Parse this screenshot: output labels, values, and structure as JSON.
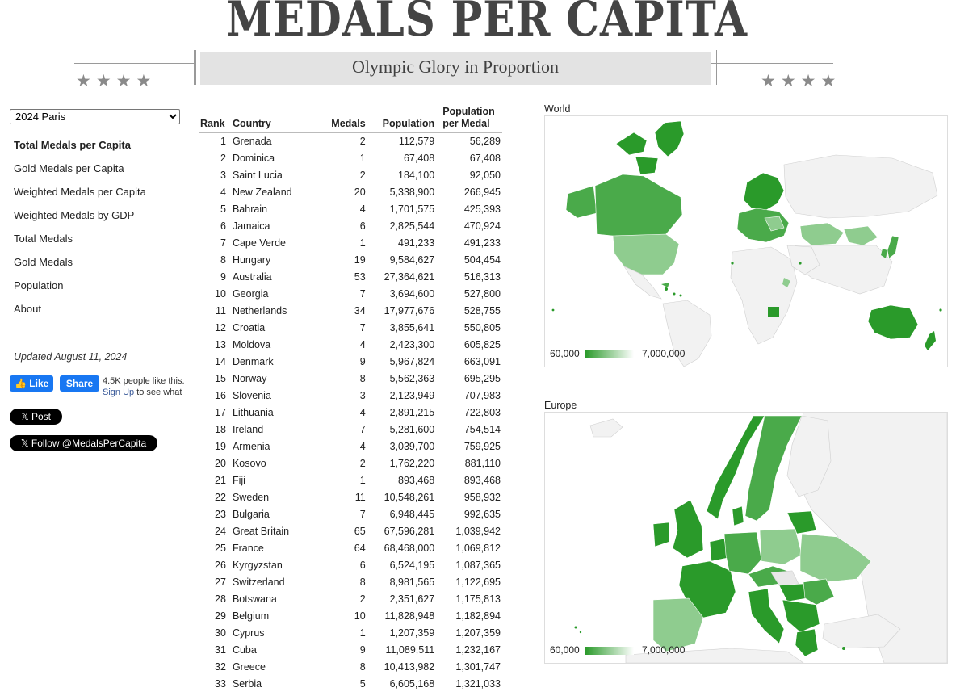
{
  "header": {
    "title": "MEDALS PER CAPITA",
    "subtitle": "Olympic Glory in Proportion",
    "stars_left": "★★★★",
    "stars_right": "★★★★"
  },
  "sidebar": {
    "selected_games": "2024 Paris",
    "nav": [
      {
        "label": "Total Medals per Capita",
        "active": true
      },
      {
        "label": "Gold Medals per Capita",
        "active": false
      },
      {
        "label": "Weighted Medals per Capita",
        "active": false
      },
      {
        "label": "Weighted Medals by GDP",
        "active": false
      },
      {
        "label": "Total Medals",
        "active": false
      },
      {
        "label": "Gold Medals",
        "active": false
      },
      {
        "label": "Population",
        "active": false
      },
      {
        "label": "About",
        "active": false
      }
    ],
    "updated": "Updated August 11, 2024",
    "facebook": {
      "like": "Like",
      "share": "Share",
      "count_text": "4.5K people like this.",
      "signup": "Sign Up",
      "signup_rest": " to see what"
    },
    "x_post": "Post",
    "x_follow": "Follow @MedalsPerCapita"
  },
  "table": {
    "headers": {
      "rank": "Rank",
      "country": "Country",
      "medals": "Medals",
      "population": "Population",
      "ppm_line1": "Population",
      "ppm_line2": "per Medal"
    },
    "rows": [
      [
        "1",
        "Grenada",
        "2",
        "112,579",
        "56,289"
      ],
      [
        "2",
        "Dominica",
        "1",
        "67,408",
        "67,408"
      ],
      [
        "3",
        "Saint Lucia",
        "2",
        "184,100",
        "92,050"
      ],
      [
        "4",
        "New Zealand",
        "20",
        "5,338,900",
        "266,945"
      ],
      [
        "5",
        "Bahrain",
        "4",
        "1,701,575",
        "425,393"
      ],
      [
        "6",
        "Jamaica",
        "6",
        "2,825,544",
        "470,924"
      ],
      [
        "7",
        "Cape Verde",
        "1",
        "491,233",
        "491,233"
      ],
      [
        "8",
        "Hungary",
        "19",
        "9,584,627",
        "504,454"
      ],
      [
        "9",
        "Australia",
        "53",
        "27,364,621",
        "516,313"
      ],
      [
        "10",
        "Georgia",
        "7",
        "3,694,600",
        "527,800"
      ],
      [
        "11",
        "Netherlands",
        "34",
        "17,977,676",
        "528,755"
      ],
      [
        "12",
        "Croatia",
        "7",
        "3,855,641",
        "550,805"
      ],
      [
        "13",
        "Moldova",
        "4",
        "2,423,300",
        "605,825"
      ],
      [
        "14",
        "Denmark",
        "9",
        "5,967,824",
        "663,091"
      ],
      [
        "15",
        "Norway",
        "8",
        "5,562,363",
        "695,295"
      ],
      [
        "16",
        "Slovenia",
        "3",
        "2,123,949",
        "707,983"
      ],
      [
        "17",
        "Lithuania",
        "4",
        "2,891,215",
        "722,803"
      ],
      [
        "18",
        "Ireland",
        "7",
        "5,281,600",
        "754,514"
      ],
      [
        "19",
        "Armenia",
        "4",
        "3,039,700",
        "759,925"
      ],
      [
        "20",
        "Kosovo",
        "2",
        "1,762,220",
        "881,110"
      ],
      [
        "21",
        "Fiji",
        "1",
        "893,468",
        "893,468"
      ],
      [
        "22",
        "Sweden",
        "11",
        "10,548,261",
        "958,932"
      ],
      [
        "23",
        "Bulgaria",
        "7",
        "6,948,445",
        "992,635"
      ],
      [
        "24",
        "Great Britain",
        "65",
        "67,596,281",
        "1,039,942"
      ],
      [
        "25",
        "France",
        "64",
        "68,468,000",
        "1,069,812"
      ],
      [
        "26",
        "Kyrgyzstan",
        "6",
        "6,524,195",
        "1,087,365"
      ],
      [
        "27",
        "Switzerland",
        "8",
        "8,981,565",
        "1,122,695"
      ],
      [
        "28",
        "Botswana",
        "2",
        "2,351,627",
        "1,175,813"
      ],
      [
        "29",
        "Belgium",
        "10",
        "11,828,948",
        "1,182,894"
      ],
      [
        "30",
        "Cyprus",
        "1",
        "1,207,359",
        "1,207,359"
      ],
      [
        "31",
        "Cuba",
        "9",
        "11,089,511",
        "1,232,167"
      ],
      [
        "32",
        "Greece",
        "8",
        "10,413,982",
        "1,301,747"
      ],
      [
        "33",
        "Serbia",
        "5",
        "6,605,168",
        "1,321,033"
      ]
    ]
  },
  "maps": {
    "world": {
      "label": "World",
      "legend_min": "60,000",
      "legend_max": "7,000,000"
    },
    "europe": {
      "label": "Europe",
      "legend_min": "60,000",
      "legend_max": "7,000,000"
    },
    "colors": {
      "dark": "#2a9a2a",
      "mid": "#4aaa4a",
      "light": "#8fcc8f",
      "none": "#f2f2f2",
      "border": "#d0d0d0"
    }
  }
}
